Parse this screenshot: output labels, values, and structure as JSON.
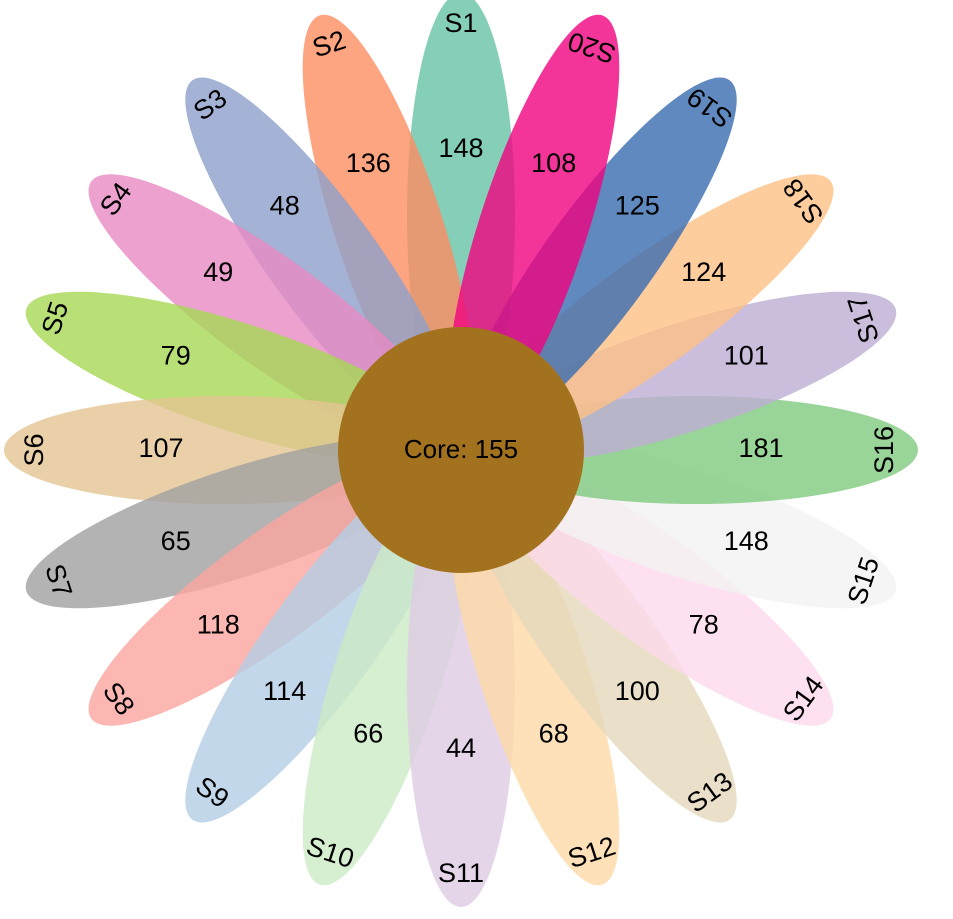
{
  "diagram": {
    "type": "flower-venn",
    "core": {
      "label": "Core: 155",
      "color": "#A3721E"
    },
    "petals": [
      {
        "name": "S1",
        "value": "148",
        "color": "#66C2A5",
        "opacity": 0.8
      },
      {
        "name": "S2",
        "value": "136",
        "color": "#FC8D62",
        "opacity": 0.8
      },
      {
        "name": "S3",
        "value": "48",
        "color": "#8DA0CB",
        "opacity": 0.8
      },
      {
        "name": "S4",
        "value": "49",
        "color": "#E78AC3",
        "opacity": 0.8
      },
      {
        "name": "S5",
        "value": "79",
        "color": "#A6D854",
        "opacity": 0.8
      },
      {
        "name": "S6",
        "value": "107",
        "color": "#E5C494",
        "opacity": 0.8
      },
      {
        "name": "S7",
        "value": "65",
        "color": "#A0A0A0",
        "opacity": 0.8
      },
      {
        "name": "S8",
        "value": "118",
        "color": "#FBA5A0",
        "opacity": 0.8
      },
      {
        "name": "S9",
        "value": "114",
        "color": "#B3CDE3",
        "opacity": 0.8
      },
      {
        "name": "S10",
        "value": "66",
        "color": "#CCEBC5",
        "opacity": 0.8
      },
      {
        "name": "S11",
        "value": "44",
        "color": "#DECBE4",
        "opacity": 0.8
      },
      {
        "name": "S12",
        "value": "68",
        "color": "#FED9A6",
        "opacity": 0.8
      },
      {
        "name": "S13",
        "value": "100",
        "color": "#E5D8BD",
        "opacity": 0.8
      },
      {
        "name": "S14",
        "value": "78",
        "color": "#FDDAEC",
        "opacity": 0.8
      },
      {
        "name": "S15",
        "value": "148",
        "color": "#F2F2F2",
        "opacity": 0.8
      },
      {
        "name": "S16",
        "value": "181",
        "color": "#7FC97F",
        "opacity": 0.8
      },
      {
        "name": "S17",
        "value": "101",
        "color": "#BEAED4",
        "opacity": 0.8
      },
      {
        "name": "S18",
        "value": "124",
        "color": "#FDC086",
        "opacity": 0.8
      },
      {
        "name": "S19",
        "value": "125",
        "color": "#386CB0",
        "opacity": 0.8
      },
      {
        "name": "S20",
        "value": "108",
        "color": "#F0027F",
        "opacity": 0.8
      }
    ]
  }
}
